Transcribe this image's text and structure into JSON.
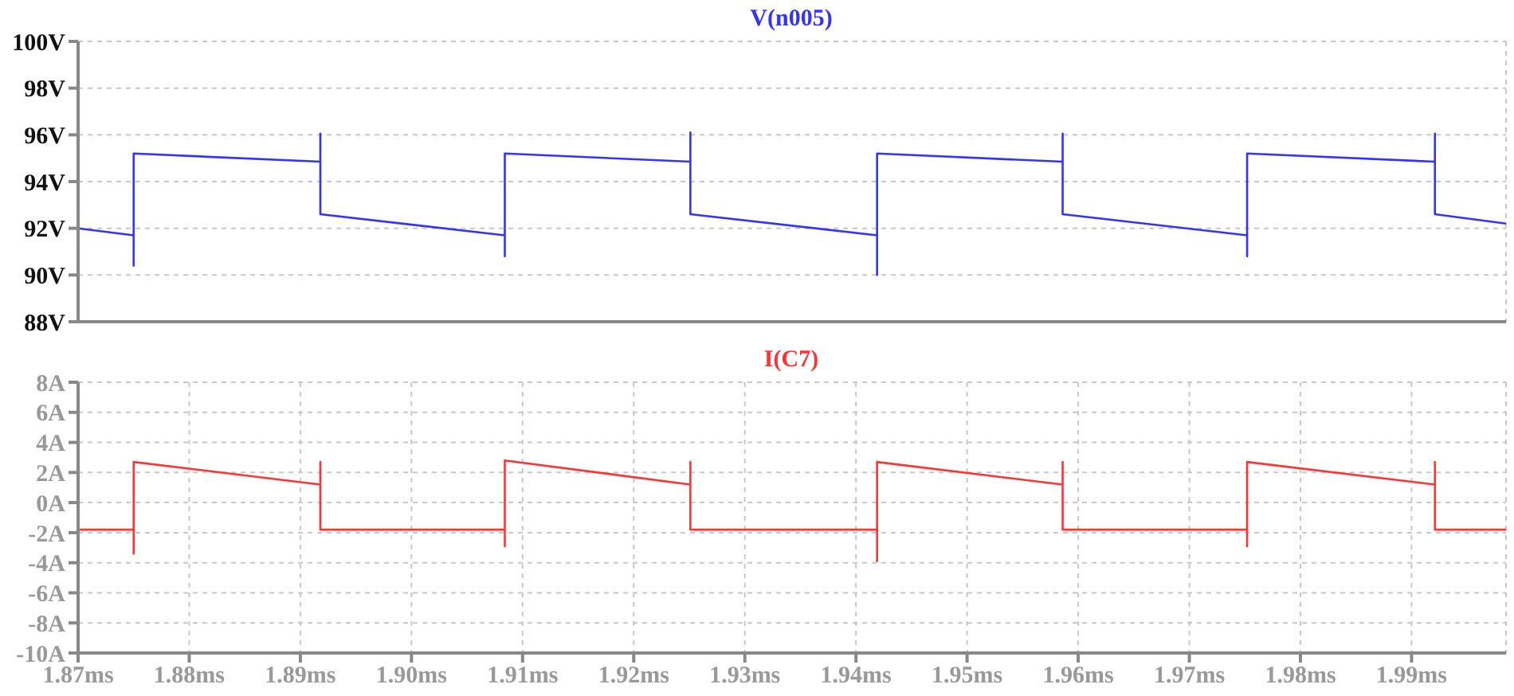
{
  "chart_data": [
    {
      "type": "line",
      "x": [
        1.87,
        1.875,
        1.875,
        1.875,
        1.8918,
        1.8918,
        1.8918,
        1.9084,
        1.9084,
        1.9084,
        1.9251,
        1.9251,
        1.9251,
        1.9419,
        1.9419,
        1.9419,
        1.9586,
        1.9586,
        1.9586,
        1.9752,
        1.9752,
        1.9752,
        1.9921,
        1.9921,
        1.9921,
        1.9985
      ],
      "series": [
        {
          "name": "V(n005)",
          "color": "#3333ff",
          "values": [
            92.0,
            91.7,
            90.4,
            95.2,
            94.85,
            96.05,
            92.6,
            91.7,
            90.8,
            95.2,
            94.85,
            96.1,
            92.6,
            91.7,
            90.0,
            95.2,
            94.85,
            96.05,
            92.6,
            91.7,
            90.8,
            95.2,
            94.85,
            96.05,
            92.6,
            92.2
          ]
        }
      ],
      "xlim": [
        1.87,
        1.9985
      ],
      "xticks": [
        {
          "value": 1.87,
          "label": null
        },
        {
          "value": 1.88,
          "label": null
        },
        {
          "value": 1.89,
          "label": null
        },
        {
          "value": 1.9,
          "label": null
        },
        {
          "value": 1.91,
          "label": null
        },
        {
          "value": 1.92,
          "label": null
        },
        {
          "value": 1.93,
          "label": null
        },
        {
          "value": 1.94,
          "label": null
        },
        {
          "value": 1.95,
          "label": null
        },
        {
          "value": 1.96,
          "label": null
        },
        {
          "value": 1.97,
          "label": null
        },
        {
          "value": 1.98,
          "label": null
        },
        {
          "value": 1.99,
          "label": null
        }
      ],
      "ylim": [
        88,
        100
      ],
      "yticks": [
        {
          "value": 88,
          "label": "88V"
        },
        {
          "value": 90,
          "label": "90V"
        },
        {
          "value": 92,
          "label": "92V"
        },
        {
          "value": 94,
          "label": "94V"
        },
        {
          "value": 96,
          "label": "96V"
        },
        {
          "value": 98,
          "label": "98V"
        },
        {
          "value": 100,
          "label": "100V"
        }
      ],
      "grid": true,
      "legend": "top",
      "tick_labels": "y"
    },
    {
      "type": "line",
      "x": [
        1.87,
        1.875,
        1.875,
        1.875,
        1.8918,
        1.8918,
        1.8918,
        1.9084,
        1.9084,
        1.9084,
        1.9251,
        1.9251,
        1.9251,
        1.9419,
        1.9419,
        1.9419,
        1.9586,
        1.9586,
        1.9586,
        1.9752,
        1.9752,
        1.9752,
        1.9921,
        1.9921,
        1.9921,
        1.9985
      ],
      "series": [
        {
          "name": "I(C7)",
          "color": "#ff3333",
          "values": [
            -1.8,
            -1.8,
            -3.4,
            2.7,
            1.2,
            2.7,
            -1.8,
            -1.8,
            -2.9,
            2.8,
            1.2,
            2.7,
            -1.8,
            -1.8,
            -3.9,
            2.7,
            1.2,
            2.7,
            -1.8,
            -1.8,
            -2.9,
            2.7,
            1.2,
            2.7,
            -1.8,
            -1.8
          ]
        }
      ],
      "xlim": [
        1.87,
        1.9985
      ],
      "xticks": [
        {
          "value": 1.87,
          "label": "1.87ms"
        },
        {
          "value": 1.88,
          "label": "1.88ms"
        },
        {
          "value": 1.89,
          "label": "1.89ms"
        },
        {
          "value": 1.9,
          "label": "1.90ms"
        },
        {
          "value": 1.91,
          "label": "1.91ms"
        },
        {
          "value": 1.92,
          "label": "1.92ms"
        },
        {
          "value": 1.93,
          "label": "1.93ms"
        },
        {
          "value": 1.94,
          "label": "1.94ms"
        },
        {
          "value": 1.95,
          "label": "1.95ms"
        },
        {
          "value": 1.96,
          "label": "1.96ms"
        },
        {
          "value": 1.97,
          "label": "1.97ms"
        },
        {
          "value": 1.98,
          "label": "1.98ms"
        },
        {
          "value": 1.99,
          "label": "1.99ms"
        }
      ],
      "ylim": [
        -10,
        8
      ],
      "yticks": [
        {
          "value": -10,
          "label": "-10A"
        },
        {
          "value": -8,
          "label": "-8A"
        },
        {
          "value": -6,
          "label": "-6A"
        },
        {
          "value": -4,
          "label": "-4A"
        },
        {
          "value": -2,
          "label": "-2A"
        },
        {
          "value": 0,
          "label": "0A"
        },
        {
          "value": 2,
          "label": "2A"
        },
        {
          "value": 4,
          "label": "4A"
        },
        {
          "value": 6,
          "label": "6A"
        },
        {
          "value": 8,
          "label": "8A"
        }
      ],
      "grid": true,
      "legend": "top"
    }
  ]
}
